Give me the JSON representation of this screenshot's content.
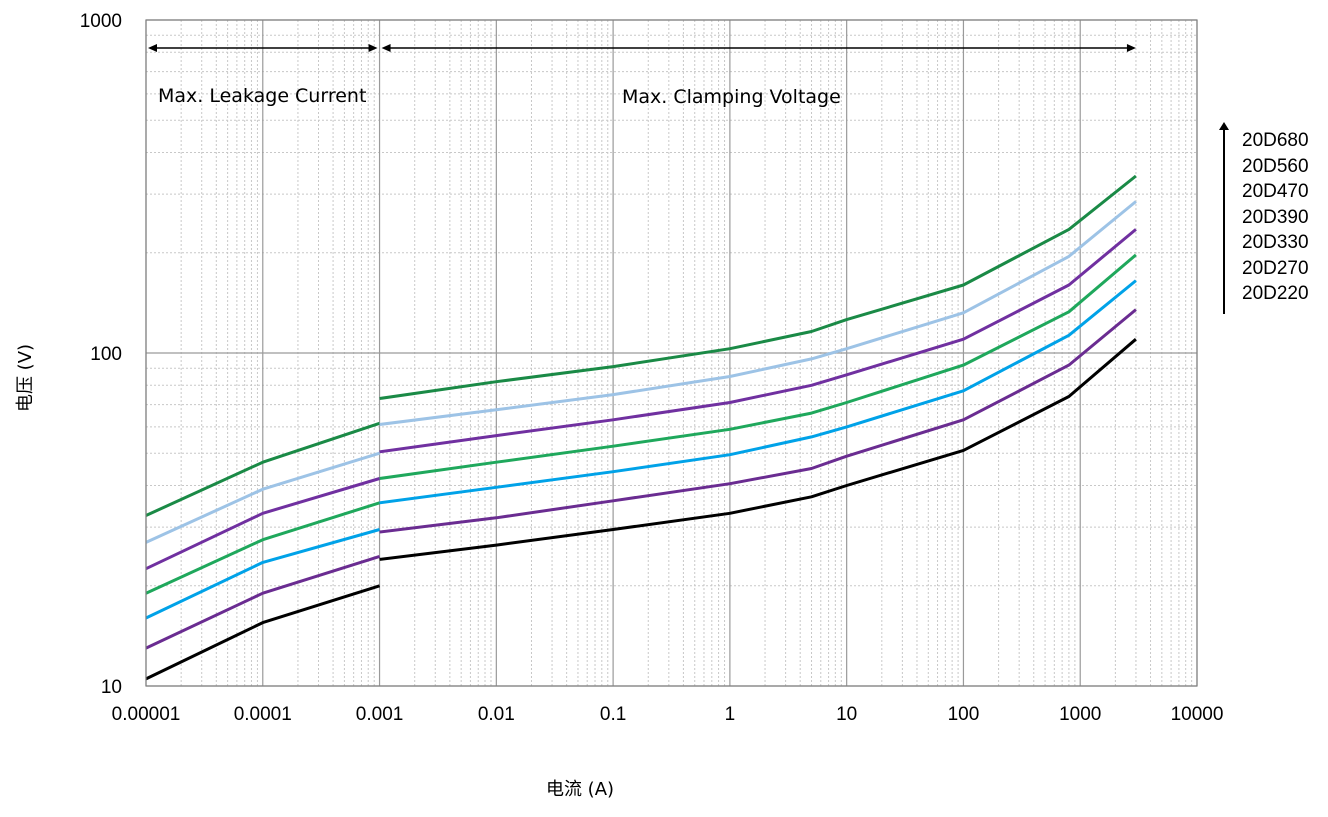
{
  "chart_data": {
    "type": "line",
    "xscale": "log",
    "yscale": "log",
    "xlim": [
      1e-05,
      10000
    ],
    "ylim": [
      10,
      1000
    ],
    "xlabel": "电流 (A)",
    "ylabel": "电压 (V)",
    "x_tick_labels": [
      "0.00001",
      "0.0001",
      "0.001",
      "0.01",
      "0.1",
      "1",
      "10",
      "100",
      "1000",
      "10000"
    ],
    "y_tick_labels": [
      "10",
      "100",
      "1000"
    ],
    "grid": true,
    "legend_labels": [
      "20D680",
      "20D560",
      "20D470",
      "20D390",
      "20D330",
      "20D270",
      "20D220"
    ],
    "annotations": {
      "leakage": "Max. Leakage Current",
      "clamping": "Max. Clamping Voltage"
    },
    "arrow_ranges": {
      "leakage": [
        1e-05,
        0.001
      ],
      "clamping": [
        0.001,
        3000
      ]
    },
    "series": [
      {
        "color": "#1a8a46",
        "leak": [
          [
            1e-05,
            32.5
          ],
          [
            0.0001,
            47
          ],
          [
            0.001,
            61.5
          ]
        ],
        "clamp": [
          [
            0.001,
            73
          ],
          [
            0.01,
            82
          ],
          [
            0.1,
            91
          ],
          [
            1,
            103
          ],
          [
            5,
            116
          ],
          [
            10,
            126
          ],
          [
            100,
            160
          ],
          [
            800,
            235
          ],
          [
            3000,
            340
          ]
        ]
      },
      {
        "color": "#9dc3e6",
        "leak": [
          [
            1e-05,
            27
          ],
          [
            0.0001,
            39
          ],
          [
            0.001,
            50
          ]
        ],
        "clamp": [
          [
            0.001,
            61
          ],
          [
            0.01,
            67.5
          ],
          [
            0.1,
            75
          ],
          [
            1,
            85
          ],
          [
            5,
            96
          ],
          [
            10,
            103
          ],
          [
            100,
            132
          ],
          [
            800,
            195
          ],
          [
            3000,
            285
          ]
        ]
      },
      {
        "color": "#7030a0",
        "leak": [
          [
            1e-05,
            22.5
          ],
          [
            0.0001,
            33
          ],
          [
            0.001,
            42
          ]
        ],
        "clamp": [
          [
            0.001,
            50.5
          ],
          [
            0.01,
            56.5
          ],
          [
            0.1,
            63
          ],
          [
            1,
            71
          ],
          [
            5,
            80
          ],
          [
            10,
            86
          ],
          [
            100,
            110
          ],
          [
            800,
            160
          ],
          [
            3000,
            235
          ]
        ]
      },
      {
        "color": "#1fa85c",
        "leak": [
          [
            1e-05,
            19
          ],
          [
            0.0001,
            27.5
          ],
          [
            0.001,
            35.5
          ]
        ],
        "clamp": [
          [
            0.001,
            42
          ],
          [
            0.01,
            47
          ],
          [
            0.1,
            52.5
          ],
          [
            1,
            59
          ],
          [
            5,
            66
          ],
          [
            10,
            71
          ],
          [
            100,
            92
          ],
          [
            800,
            133
          ],
          [
            3000,
            197
          ]
        ]
      },
      {
        "color": "#00a2e8",
        "leak": [
          [
            1e-05,
            16
          ],
          [
            0.0001,
            23.5
          ],
          [
            0.001,
            29.5
          ]
        ],
        "clamp": [
          [
            0.001,
            35.5
          ],
          [
            0.01,
            39.5
          ],
          [
            0.1,
            44
          ],
          [
            1,
            49.5
          ],
          [
            5,
            56
          ],
          [
            10,
            60
          ],
          [
            100,
            77
          ],
          [
            800,
            113
          ],
          [
            3000,
            165
          ]
        ]
      },
      {
        "color": "#6a2c91",
        "leak": [
          [
            1e-05,
            13
          ],
          [
            0.0001,
            19
          ],
          [
            0.001,
            24.5
          ]
        ],
        "clamp": [
          [
            0.001,
            29
          ],
          [
            0.01,
            32
          ],
          [
            0.1,
            36
          ],
          [
            1,
            40.5
          ],
          [
            5,
            45
          ],
          [
            10,
            49
          ],
          [
            100,
            63
          ],
          [
            800,
            92
          ],
          [
            3000,
            135
          ]
        ]
      },
      {
        "color": "#000000",
        "leak": [
          [
            1e-05,
            10.5
          ],
          [
            0.0001,
            15.5
          ],
          [
            0.001,
            20
          ]
        ],
        "clamp": [
          [
            0.001,
            24
          ],
          [
            0.01,
            26.5
          ],
          [
            0.1,
            29.5
          ],
          [
            1,
            33
          ],
          [
            5,
            37
          ],
          [
            10,
            40
          ],
          [
            100,
            51
          ],
          [
            800,
            74
          ],
          [
            3000,
            110
          ]
        ]
      }
    ]
  }
}
